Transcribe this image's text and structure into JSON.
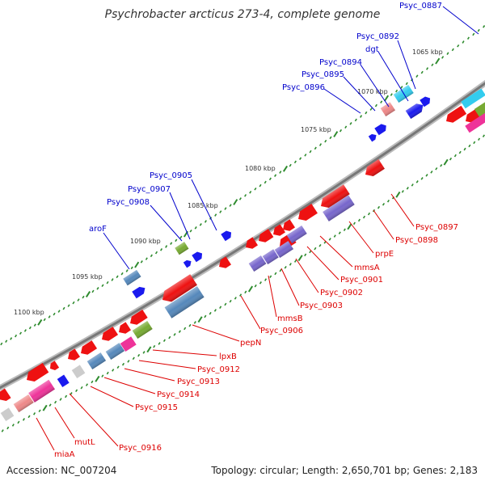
{
  "title": "Psychrobacter arcticus 273-4, complete genome",
  "accession": "Accession: NC_007204",
  "summary": "Topology: circular; Length: 2,650,701 bp; Genes: 2,183",
  "colors": {
    "backbone": "#888888",
    "minor_tick": "#2e8b2e",
    "major_tick": "#2e8b2e",
    "forward_label": "#0000cc",
    "reverse_label": "#dd0000"
  },
  "scale": {
    "ticks": [
      {
        "kbp": 1065,
        "label": "1065 kbp"
      },
      {
        "kbp": 1070,
        "label": "1070 kbp"
      },
      {
        "kbp": 1075,
        "label": "1075 kbp"
      },
      {
        "kbp": 1080,
        "label": "1080 kbp"
      },
      {
        "kbp": 1085,
        "label": "1085 kbp"
      },
      {
        "kbp": 1090,
        "label": "1090 kbp"
      },
      {
        "kbp": 1095,
        "label": "1095 kbp"
      },
      {
        "kbp": 1100,
        "label": "1100 kbp"
      }
    ]
  },
  "forward_genes": [
    {
      "name": "Psyc_0887",
      "color": "#33ccee"
    },
    {
      "name": "Psyc_0892",
      "color": "#33ccee"
    },
    {
      "name": "dgt",
      "color": "#33ccee"
    },
    {
      "name": "Psyc_0894",
      "color": "#ee8888"
    },
    {
      "name": "Psyc_0895",
      "color": "#1a1aee"
    },
    {
      "name": "Psyc_0896",
      "color": "#1a1aee"
    },
    {
      "name": "Psyc_0905",
      "color": "#1a1aee"
    },
    {
      "name": "Psyc_0907",
      "color": "#1a1aee"
    },
    {
      "name": "Psyc_0908",
      "color": "#77aa33"
    },
    {
      "name": "aroF",
      "color": "#5588bb"
    }
  ],
  "reverse_genes": [
    {
      "name": "Psyc_0897",
      "color": "#ee1111"
    },
    {
      "name": "Psyc_0898",
      "color": "#7766cc"
    },
    {
      "name": "prpE",
      "color": "#ee1111"
    },
    {
      "name": "mmsA",
      "color": "#7766cc"
    },
    {
      "name": "Psyc_0901",
      "color": "#7766cc"
    },
    {
      "name": "Psyc_0902",
      "color": "#7766cc"
    },
    {
      "name": "Psyc_0903",
      "color": "#ee1111"
    },
    {
      "name": "mmsB",
      "color": "#7766cc"
    },
    {
      "name": "Psyc_0906",
      "color": "#ee1111"
    },
    {
      "name": "pepN",
      "color": "#5588bb"
    },
    {
      "name": "lpxB",
      "color": "#ee1111"
    },
    {
      "name": "Psyc_0912",
      "color": "#77aa33"
    },
    {
      "name": "Psyc_0913",
      "color": "#ee3399"
    },
    {
      "name": "Psyc_0914",
      "color": "#5588bb"
    },
    {
      "name": "Psyc_0915",
      "color": "#1a1aee"
    },
    {
      "name": "Psyc_0916",
      "color": "#ee3399"
    },
    {
      "name": "mutL",
      "color": "#ee8888"
    },
    {
      "name": "miaA",
      "color": "#ee1111"
    }
  ]
}
